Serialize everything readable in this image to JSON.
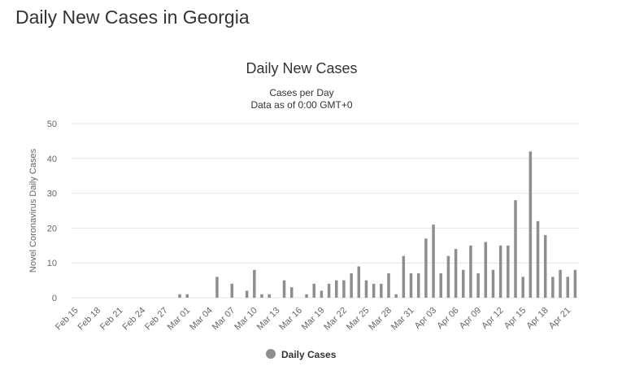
{
  "page": {
    "heading": "Daily New Cases in Georgia"
  },
  "colors": {
    "bar": "#8e8e8e",
    "grid": "#e6e6e6",
    "text": "#333333",
    "axis_text": "#666666"
  },
  "chart_data": {
    "type": "bar",
    "title": "Daily New Cases",
    "subtitle": "Cases per Day",
    "subtitle2": "Data as of 0:00 GMT+0",
    "ylabel": "Novel Coronavirus Daily Cases",
    "xlabel": "",
    "ylim": [
      0,
      50
    ],
    "yticks": [
      0,
      10,
      20,
      30,
      40,
      50
    ],
    "legend": {
      "label": "Daily Cases",
      "position": "bottom-center"
    },
    "xtick_labels": [
      "Feb 15",
      "Feb 18",
      "Feb 21",
      "Feb 24",
      "Feb 27",
      "Mar 01",
      "Mar 04",
      "Mar 07",
      "Mar 10",
      "Mar 13",
      "Mar 16",
      "Mar 19",
      "Mar 22",
      "Mar 25",
      "Mar 28",
      "Mar 31",
      "Apr 03",
      "Apr 06",
      "Apr 09",
      "Apr 12",
      "Apr 15",
      "Apr 18",
      "Apr 21"
    ],
    "categories": [
      "Feb 15",
      "Feb 16",
      "Feb 17",
      "Feb 18",
      "Feb 19",
      "Feb 20",
      "Feb 21",
      "Feb 22",
      "Feb 23",
      "Feb 24",
      "Feb 25",
      "Feb 26",
      "Feb 27",
      "Feb 28",
      "Feb 29",
      "Mar 01",
      "Mar 02",
      "Mar 03",
      "Mar 04",
      "Mar 05",
      "Mar 06",
      "Mar 07",
      "Mar 08",
      "Mar 09",
      "Mar 10",
      "Mar 11",
      "Mar 12",
      "Mar 13",
      "Mar 14",
      "Mar 15",
      "Mar 16",
      "Mar 17",
      "Mar 18",
      "Mar 19",
      "Mar 20",
      "Mar 21",
      "Mar 22",
      "Mar 23",
      "Mar 24",
      "Mar 25",
      "Mar 26",
      "Mar 27",
      "Mar 28",
      "Mar 29",
      "Mar 30",
      "Mar 31",
      "Apr 01",
      "Apr 02",
      "Apr 03",
      "Apr 04",
      "Apr 05",
      "Apr 06",
      "Apr 07",
      "Apr 08",
      "Apr 09",
      "Apr 10",
      "Apr 11",
      "Apr 12",
      "Apr 13",
      "Apr 14",
      "Apr 15",
      "Apr 16",
      "Apr 17",
      "Apr 18",
      "Apr 19",
      "Apr 20",
      "Apr 21",
      "Apr 22"
    ],
    "series": [
      {
        "name": "Daily Cases",
        "values": [
          0,
          0,
          0,
          0,
          0,
          0,
          0,
          0,
          0,
          0,
          0,
          0,
          0,
          0,
          1,
          1,
          0,
          0,
          0,
          6,
          0,
          4,
          0,
          2,
          8,
          1,
          1,
          0,
          5,
          3,
          0,
          1,
          4,
          2,
          4,
          5,
          5,
          7,
          9,
          5,
          4,
          4,
          7,
          1,
          12,
          7,
          7,
          17,
          21,
          7,
          12,
          14,
          8,
          15,
          7,
          16,
          8,
          15,
          15,
          28,
          6,
          42,
          22,
          18,
          6,
          8,
          6,
          8
        ]
      }
    ]
  }
}
